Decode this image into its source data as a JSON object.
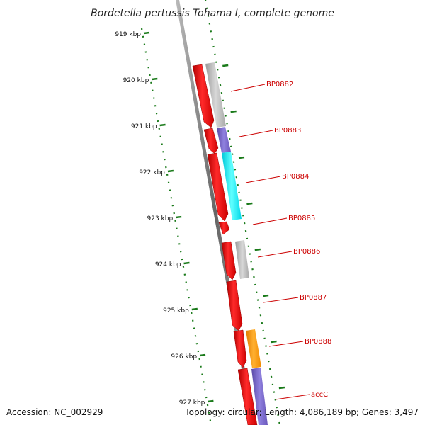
{
  "title": "Bordetella pertussis Tohama I, complete genome",
  "footer": {
    "accession": "Accession: NC_002929",
    "summary": "Topology: circular; Length: 4,086,189 bp; Genes: 3,497"
  },
  "ticks": [
    "919 kbp",
    "920 kbp",
    "921 kbp",
    "922 kbp",
    "923 kbp",
    "924 kbp",
    "925 kbp",
    "926 kbp",
    "927 kbp"
  ],
  "genes": [
    "BP0882",
    "BP0883",
    "BP0884",
    "BP0885",
    "BP0886",
    "BP0887",
    "BP0888",
    "accC"
  ],
  "colors": {
    "cds_red": "#ff0000",
    "gray": "#bbbbbb",
    "purple": "#7b68cc",
    "cyan": "#00e5ee",
    "orange": "#ff9900",
    "tick_green": "#1a7a1a",
    "label_red": "#cc0000",
    "backbone": "#888888"
  }
}
